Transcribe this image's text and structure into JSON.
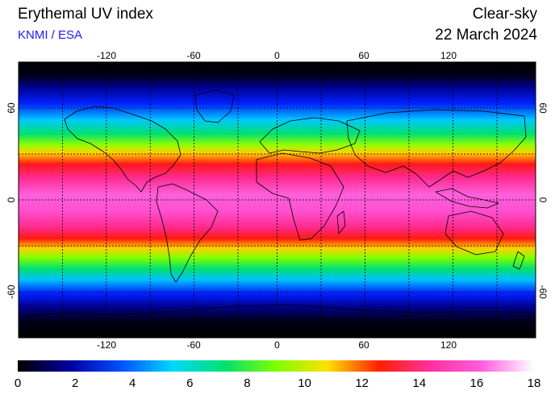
{
  "header": {
    "title": "Erythemal UV index",
    "credit": "KNMI / ESA",
    "condition": "Clear-sky",
    "date": "22 March 2024"
  },
  "map": {
    "lon_ticks": [
      "-120",
      "-60",
      "0",
      "60",
      "120"
    ],
    "lat_ticks": [
      "60",
      "0",
      "-60"
    ],
    "grid_lines": "dashed every 30 degrees",
    "background_color": "#000000",
    "coastline_color": "#000000"
  },
  "colorbar": {
    "labels": [
      "0",
      "2",
      "4",
      "6",
      "8",
      "10",
      "12",
      "14",
      "16",
      "18"
    ],
    "min": 0,
    "max": 18,
    "colors": [
      "#000000",
      "#0000a0",
      "#0050ff",
      "#00d8ff",
      "#00e070",
      "#7cff00",
      "#ffe000",
      "#ff2000",
      "#ff30a0",
      "#ff60e0",
      "#ffffff"
    ]
  }
}
